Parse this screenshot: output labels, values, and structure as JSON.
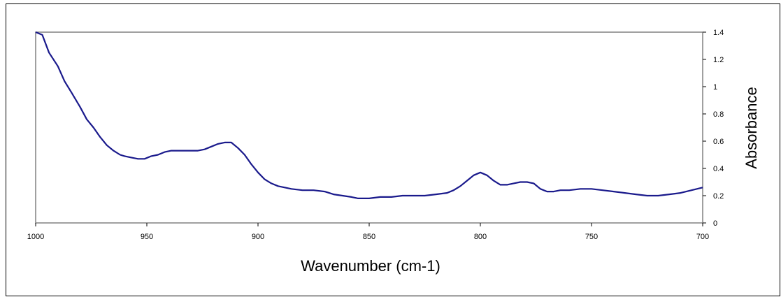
{
  "chart_data": {
    "type": "line",
    "title": "",
    "xlabel": "Wavenumber (cm-1)",
    "ylabel": "Absorbance",
    "xlim": [
      1000,
      700
    ],
    "x_reversed": true,
    "ylim": [
      0,
      1.4
    ],
    "x_ticks": [
      "1000",
      "950",
      "900",
      "850",
      "800",
      "750",
      "700"
    ],
    "y_ticks": [
      "0",
      "0.2",
      "0.4",
      "0.6",
      "0.8",
      "1",
      "1.2",
      "1.4"
    ],
    "y_axis_side": "right",
    "grid": false,
    "legend": "none",
    "line_color": "#1a1a8c",
    "plot_border_color": "#808080",
    "series": [
      {
        "x": [
          1000,
          997,
          994,
          990,
          987,
          984,
          980,
          977,
          974,
          971,
          968,
          965,
          962,
          960,
          957,
          954,
          951,
          948,
          945,
          942,
          939,
          936,
          933,
          930,
          927,
          924,
          921,
          918,
          915,
          912,
          909,
          906,
          903,
          900,
          897,
          894,
          891,
          888,
          885,
          880,
          875,
          870,
          866,
          862,
          858,
          855,
          850,
          845,
          840,
          835,
          830,
          825,
          820,
          815,
          812,
          809,
          806,
          803,
          800,
          797,
          794,
          791,
          788,
          785,
          782,
          779,
          776,
          773,
          770,
          767,
          764,
          760,
          755,
          750,
          745,
          740,
          735,
          730,
          725,
          720,
          715,
          710,
          705,
          700
        ],
        "y": [
          1.46,
          1.38,
          1.25,
          1.15,
          1.04,
          0.96,
          0.85,
          0.76,
          0.7,
          0.63,
          0.57,
          0.53,
          0.5,
          0.49,
          0.48,
          0.47,
          0.47,
          0.49,
          0.5,
          0.52,
          0.53,
          0.53,
          0.53,
          0.53,
          0.53,
          0.54,
          0.56,
          0.58,
          0.59,
          0.59,
          0.55,
          0.5,
          0.43,
          0.37,
          0.32,
          0.29,
          0.27,
          0.26,
          0.25,
          0.24,
          0.24,
          0.23,
          0.21,
          0.2,
          0.19,
          0.18,
          0.18,
          0.19,
          0.19,
          0.2,
          0.2,
          0.2,
          0.21,
          0.22,
          0.24,
          0.27,
          0.31,
          0.35,
          0.37,
          0.35,
          0.31,
          0.28,
          0.28,
          0.29,
          0.3,
          0.3,
          0.29,
          0.25,
          0.23,
          0.23,
          0.24,
          0.24,
          0.25,
          0.25,
          0.24,
          0.23,
          0.22,
          0.21,
          0.2,
          0.2,
          0.21,
          0.22,
          0.24,
          0.26
        ]
      }
    ]
  }
}
